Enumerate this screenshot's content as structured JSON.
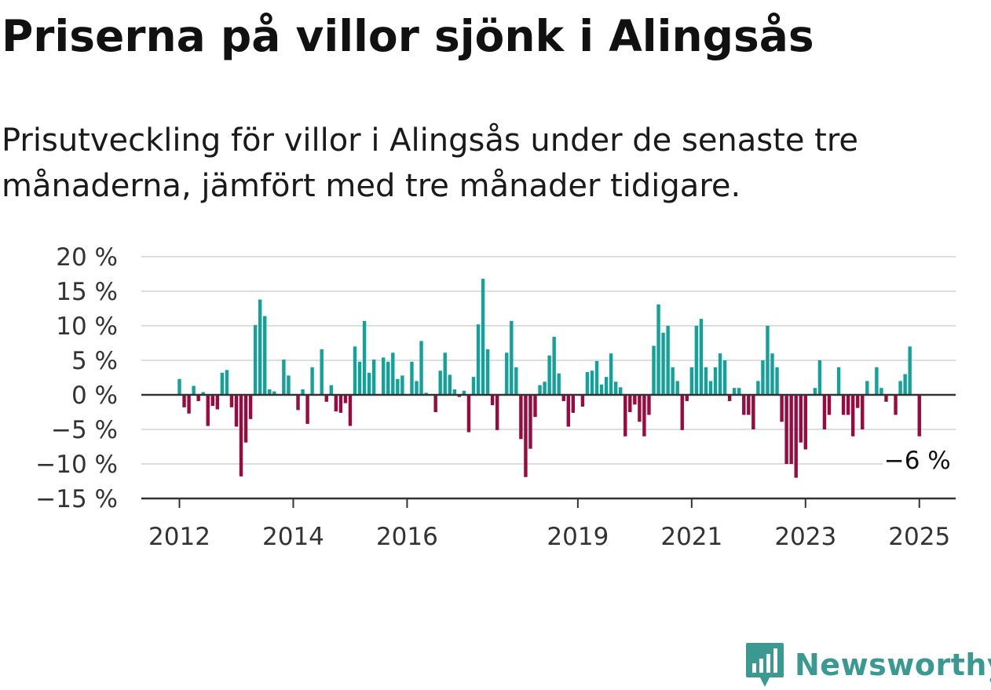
{
  "title": "Priserna på villor sjönk i Alingsås",
  "subtitle": "Prisutveckling för villor i Alingsås under de senaste tre månaderna, jämfört med tre månader tidigare.",
  "brand": {
    "name": "Newsworthy",
    "color": "#3a9a92",
    "icon": "bar-chart-badge-icon"
  },
  "colors": {
    "positive": "#13a29a",
    "negative": "#9b0a3e",
    "grid": "#dddddd",
    "axis": "#333333"
  },
  "chart_data": {
    "type": "bar",
    "x_start": "2012-01",
    "frequency": "monthly",
    "ylim": [
      -15,
      20
    ],
    "grid": true,
    "y_ticks": [
      {
        "value": 20,
        "label": "20 %"
      },
      {
        "value": 15,
        "label": "15 %"
      },
      {
        "value": 10,
        "label": "10 %"
      },
      {
        "value": 5,
        "label": "5 %"
      },
      {
        "value": 0,
        "label": "0 %"
      },
      {
        "value": -5,
        "label": "−5 %"
      },
      {
        "value": -10,
        "label": "−10 %"
      },
      {
        "value": -15,
        "label": "−15 %"
      }
    ],
    "x_ticks": [
      {
        "month": "2012-01",
        "label": "2012"
      },
      {
        "month": "2014-01",
        "label": "2014"
      },
      {
        "month": "2016-01",
        "label": "2016"
      },
      {
        "month": "2019-01",
        "label": "2019"
      },
      {
        "month": "2021-01",
        "label": "2021"
      },
      {
        "month": "2023-01",
        "label": "2023"
      },
      {
        "month": "2025-01",
        "label": "2025"
      }
    ],
    "end_label": "−6 %",
    "values": [
      2.3,
      -1.8,
      -2.7,
      1.3,
      -0.9,
      0.4,
      -4.5,
      -1.6,
      -2.1,
      3.2,
      3.6,
      -1.8,
      -4.6,
      -11.8,
      -6.9,
      -3.5,
      10.1,
      13.8,
      11.4,
      0.8,
      0.5,
      0,
      5.1,
      2.8,
      0,
      -2.2,
      0.8,
      -4.2,
      4.0,
      0,
      6.6,
      -1.0,
      1.4,
      -2.4,
      -2.6,
      -1.2,
      -4.5,
      7.0,
      4.8,
      10.7,
      3.2,
      5.1,
      0,
      5.4,
      4.8,
      6.1,
      2.3,
      2.8,
      0,
      4.8,
      2.0,
      7.8,
      0.3,
      0,
      -2.5,
      3.5,
      6.1,
      2.9,
      0.8,
      -0.3,
      0.6,
      -5.4,
      2.6,
      10.2,
      16.8,
      6.6,
      -1.5,
      -5.1,
      0,
      6.1,
      10.7,
      4.0,
      -6.4,
      -11.9,
      -7.8,
      -3.2,
      1.4,
      1.9,
      5.7,
      8.4,
      3.1,
      -0.9,
      -4.6,
      -2.6,
      0,
      -1.7,
      3.3,
      3.5,
      4.9,
      1.5,
      2.6,
      6.0,
      1.9,
      1.1,
      -6.0,
      -2.5,
      -1.4,
      -3.9,
      -6.0,
      -2.9,
      7.1,
      13.1,
      9.0,
      10.0,
      4.0,
      2.0,
      -5.1,
      -0.9,
      4.0,
      10.0,
      11.0,
      4.0,
      2.0,
      4.0,
      6.0,
      5.0,
      -0.9,
      1.0,
      1.0,
      -2.9,
      -2.9,
      -5.0,
      2.0,
      5.0,
      10.0,
      6.0,
      4.0,
      -3.9,
      -10.0,
      -10.0,
      -12.0,
      -6.9,
      -7.9,
      0,
      1.0,
      5.0,
      -5.0,
      -2.9,
      0,
      4.0,
      -2.9,
      -2.9,
      -6.0,
      -1.9,
      -5.0,
      2.0,
      0,
      4.0,
      1.0,
      -1.0,
      0,
      -2.9,
      2.0,
      3.0,
      7.0,
      0,
      -6.0
    ]
  }
}
